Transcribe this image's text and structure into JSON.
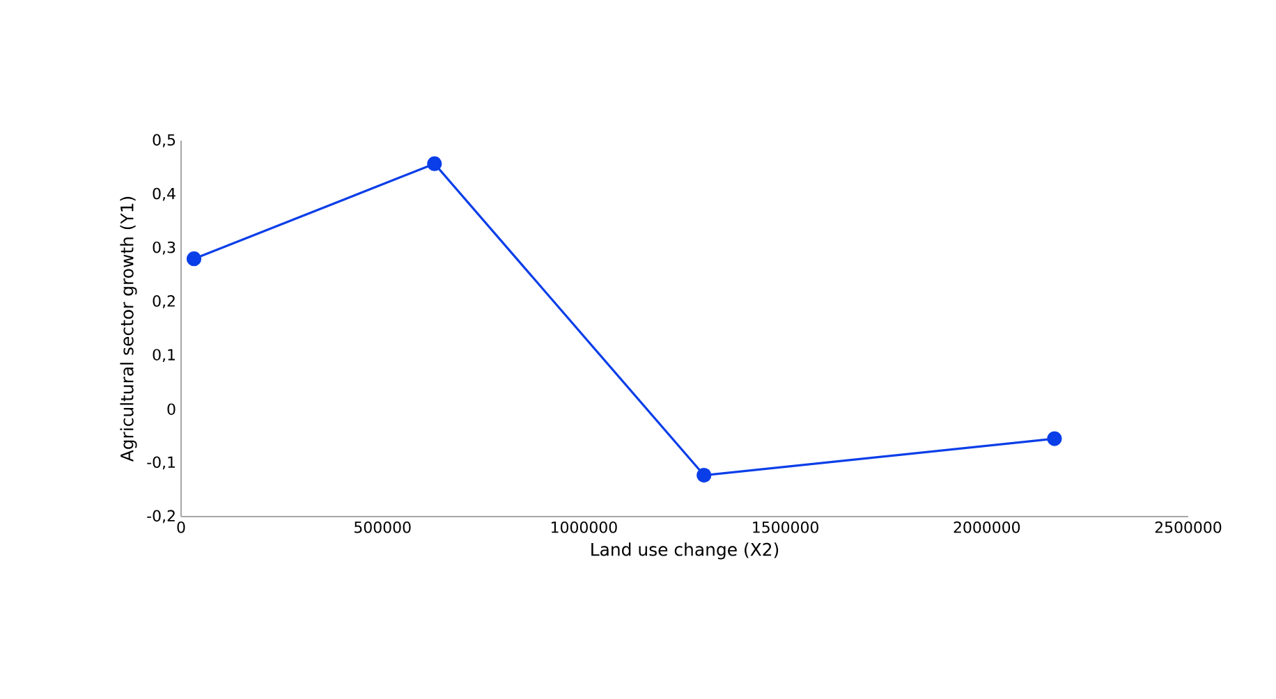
{
  "chart_data": {
    "type": "line",
    "xlabel": "Land use change (X2)",
    "ylabel": "Agricultural sector growth (Y1)",
    "x": [
      32000,
      629000,
      1298000,
      2168000
    ],
    "series": [
      {
        "color": "#0a3ee8",
        "values": [
          0.28,
          0.457,
          -0.123,
          -0.055
        ]
      }
    ],
    "xlim": [
      0,
      2500000
    ],
    "xticks": [
      0,
      500000,
      1000000,
      1500000,
      2000000,
      2500000
    ],
    "ylim": [
      -0.2,
      0.5
    ],
    "yticks": [
      {
        "value": -0.2,
        "label": "-0,2"
      },
      {
        "value": -0.1,
        "label": "-0,1"
      },
      {
        "value": 0,
        "label": "0"
      },
      {
        "value": 0.1,
        "label": "0,1"
      },
      {
        "value": 0.2,
        "label": "0,2"
      },
      {
        "value": 0.3,
        "label": "0,3"
      },
      {
        "value": 0.4,
        "label": "0,4"
      },
      {
        "value": 0.5,
        "label": "0,5"
      }
    ],
    "marker": "circle",
    "line_style": "solid"
  }
}
